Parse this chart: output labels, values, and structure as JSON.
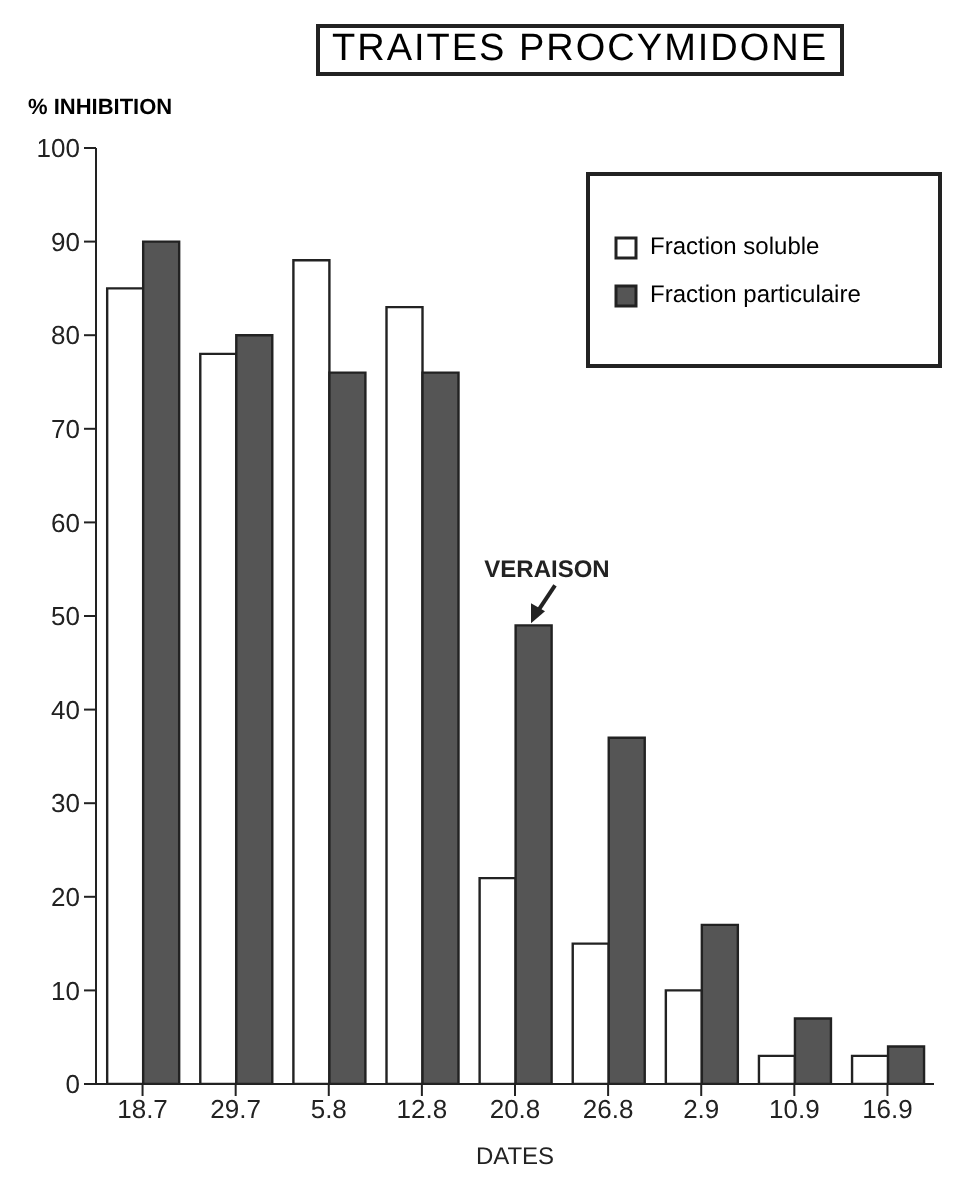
{
  "chart_data": {
    "type": "bar",
    "title": "TRAITES PROCYMIDONE",
    "xlabel": "DATES",
    "ylabel": "% INHIBITION",
    "categories": [
      "18.7",
      "29.7",
      "5.8",
      "12.8",
      "20.8",
      "26.8",
      "2.9",
      "10.9",
      "16.9"
    ],
    "series": [
      {
        "name": "Fraction soluble",
        "color": "#ffffff",
        "values": [
          85,
          78,
          88,
          83,
          22,
          15,
          10,
          3,
          3
        ]
      },
      {
        "name": "Fraction particulaire",
        "color": "#555555",
        "values": [
          90,
          80,
          76,
          76,
          49,
          37,
          17,
          7,
          4
        ]
      }
    ],
    "ylim": [
      0,
      100
    ],
    "yticks": [
      0,
      10,
      20,
      30,
      40,
      50,
      60,
      70,
      80,
      90,
      100
    ],
    "annotations": [
      {
        "text": "VERAISON",
        "x": "20.8",
        "y": 49
      }
    ],
    "grid": false,
    "legend": "top right"
  }
}
